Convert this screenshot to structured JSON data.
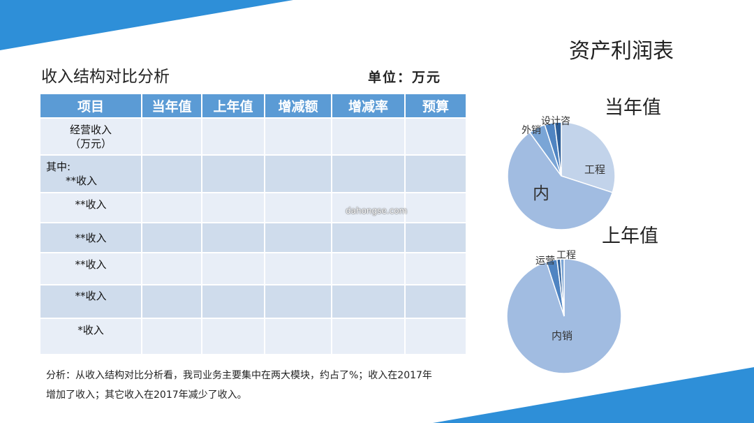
{
  "slide": {
    "title": "资产利润表",
    "subtitle": "收入结构对比分析",
    "unit": "单位：万元",
    "watermark": "dahongse.com"
  },
  "table": {
    "headers": [
      "项目",
      "当年值",
      "上年值",
      "增减额",
      "增减率",
      "预算"
    ],
    "rows": [
      {
        "label_line1": "经营收入",
        "label_line2": "（万元）"
      },
      {
        "label_line1": "其中:",
        "label_line2": "**收入"
      },
      {
        "label_line1": "**收入"
      },
      {
        "label_line1": "**收入"
      },
      {
        "label_line1": "**收入"
      },
      {
        "label_line1": "**收入"
      },
      {
        "label_line1": "*收入"
      }
    ]
  },
  "analysis": {
    "line1": "分析：从收入结构对比分析看，我司业务主要集中在两大模块，约占了%；收入在2017年",
    "line2": "增加了收入；其它收入在2017年减少了收入。"
  },
  "colors": {
    "header_blue": "#5b9bd5",
    "row_dark": "#cfdcec",
    "row_light": "#e8eef7",
    "deco_blue": "#2e8fd8"
  },
  "chart_data": [
    {
      "type": "pie",
      "title": "当年值",
      "labels": [
        "工程",
        "内",
        "外销",
        "设计咨",
        ""
      ],
      "values": [
        30,
        60,
        5,
        3,
        2
      ],
      "colors": [
        "#c2d3ea",
        "#a1bce1",
        "#7aa5d6",
        "#4f84c2",
        "#2e5f99"
      ]
    },
    {
      "type": "pie",
      "title": "上年值",
      "labels": [
        "内销",
        "运营",
        "工程",
        ""
      ],
      "values": [
        95,
        3,
        1,
        1
      ],
      "colors": [
        "#a1bce1",
        "#4f84c2",
        "#2e5f99",
        "#7aa5d6"
      ]
    }
  ]
}
